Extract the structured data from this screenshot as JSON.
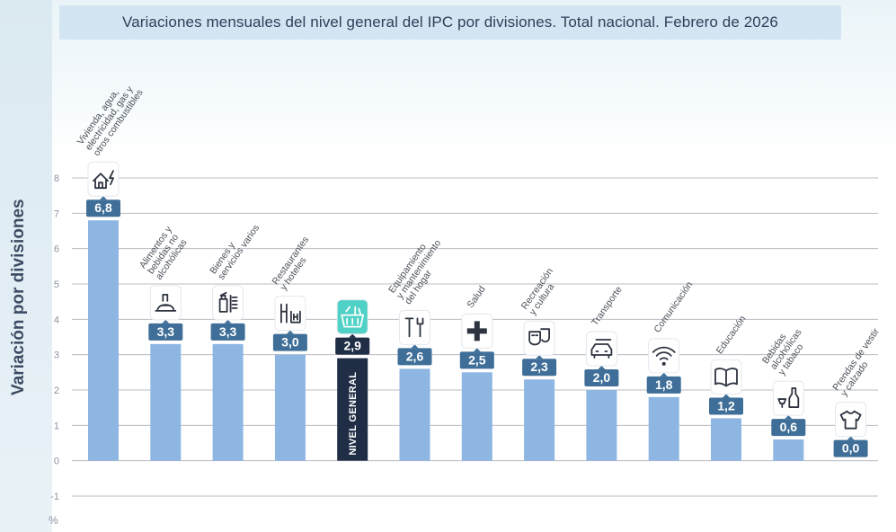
{
  "chart_data": {
    "type": "bar",
    "title": "Variaciones mensuales del nivel general del IPC por divisiones. Total nacional. Febrero de 2026",
    "ylabel": "Variación por divisiones",
    "yunit": "%",
    "ylim": [
      -1,
      8
    ],
    "yticks": [
      "-1",
      "0",
      "1",
      "2",
      "3",
      "4",
      "5",
      "6",
      "7",
      "8"
    ],
    "grid": true,
    "categories": [
      [
        "Vivienda, agua,",
        "electricidad, gas y",
        "otros combustibles"
      ],
      [
        "Alimentos y",
        "bebidas no",
        "alcohólicas"
      ],
      [
        "Bienes y",
        "servicios varios"
      ],
      [
        "Restaurantes",
        "y hoteles"
      ],
      [
        "NIVEL GENERAL"
      ],
      [
        "Equipamiento",
        "y mantenimiento",
        "del hogar"
      ],
      [
        "Salud"
      ],
      [
        "Recreación",
        "y cultura"
      ],
      [
        "Transporte"
      ],
      [
        "Comunicación"
      ],
      [
        "Educación"
      ],
      [
        "Bebidas",
        "alcohólicas",
        "y tabaco"
      ],
      [
        "Prendas de vestir",
        "y calzado"
      ]
    ],
    "values": [
      6.8,
      3.3,
      3.3,
      3.0,
      2.9,
      2.6,
      2.5,
      2.3,
      2.0,
      1.8,
      1.2,
      0.6,
      0.0
    ],
    "value_labels": [
      "6,8",
      "3,3",
      "3,3",
      "3,0",
      "2,9",
      "2,6",
      "2,5",
      "2,3",
      "2,0",
      "1,8",
      "1,2",
      "0,6",
      "0,0"
    ],
    "icons": [
      "house-energy-icon",
      "food-icon",
      "personal-care-icon",
      "restaurant-icon",
      "shopping-basket-icon",
      "tools-icon",
      "health-cross-icon",
      "theater-masks-icon",
      "car-icon",
      "wifi-icon",
      "book-icon",
      "bottle-glass-icon",
      "tshirt-icon"
    ],
    "highlight_index": 4,
    "colors": {
      "bar": "#8db6e2",
      "highlight_bar": "#1f2d45",
      "label_bg": "#3f6f98",
      "highlight_label_bg": "#1f2d45",
      "highlight_icon_bg": "#4fd1c5",
      "grid": "#b9bcc2",
      "tick_text": "#8a93a0",
      "title_bg": "#d3e4f2"
    }
  }
}
